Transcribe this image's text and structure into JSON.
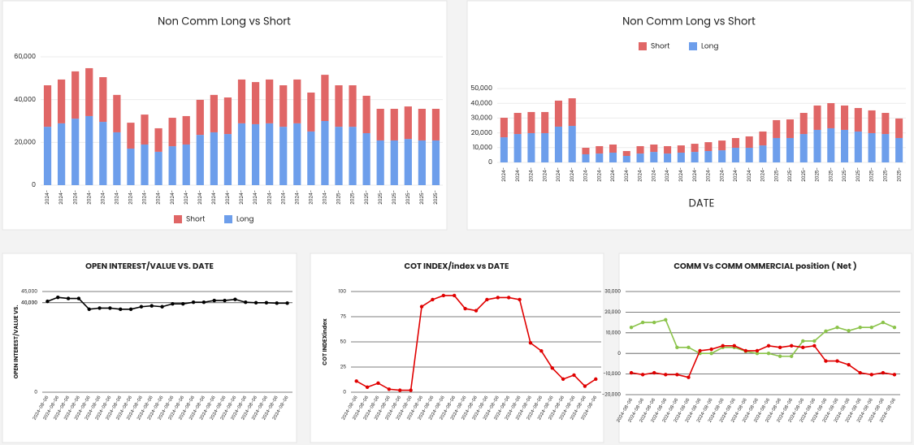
{
  "chart_data": [
    {
      "type": "stacked_bar",
      "title": "Non Comm Long vs Short",
      "legend": "bottom",
      "grid": true,
      "categories": [
        "2024-",
        "2024-",
        "2024-",
        "2024-",
        "2024-",
        "2024-",
        "2024-",
        "2024-",
        "2024-",
        "2024-",
        "2024-",
        "2024-",
        "2024-",
        "2024-",
        "2024-",
        "2024-",
        "2024-",
        "2024-",
        "2024-",
        "2024-",
        "2024-",
        "2025-",
        "2025-",
        "2025-",
        "2025-",
        "2025-",
        "2025-",
        "2025-",
        "2025-"
      ],
      "series": [
        {
          "name": "Short",
          "color": "#e06666",
          "values": [
            19400,
            20500,
            22100,
            22400,
            20900,
            17500,
            12100,
            14000,
            11000,
            13300,
            13300,
            16400,
            17500,
            17100,
            20500,
            19700,
            20500,
            19400,
            20500,
            18200,
            21600,
            19400,
            19400,
            17500,
            14800,
            14800,
            15200,
            14800,
            14800
          ]
        },
        {
          "name": "Long",
          "color": "#6d9eeb",
          "values": [
            27300,
            28900,
            31100,
            32300,
            29600,
            24700,
            17100,
            19000,
            15600,
            18200,
            19000,
            23500,
            24700,
            23900,
            28900,
            28500,
            28900,
            27300,
            28900,
            25100,
            30000,
            27300,
            27300,
            24300,
            20900,
            20900,
            21600,
            20900,
            20900
          ]
        }
      ],
      "ylim": [
        0,
        60000
      ],
      "yticks": [
        0,
        {
          "value": 20000,
          "label": "20,000"
        },
        {
          "value": 40000,
          "label": "40,000"
        },
        {
          "value": 60000,
          "label": "60,000"
        }
      ]
    },
    {
      "type": "stacked_bar",
      "title": "Non Comm Long vs Short",
      "legend": "top",
      "grid": true,
      "xlabel": "DATE",
      "categories": [
        "2024-",
        "2024-",
        "2024-",
        "2024-",
        "2024-",
        "2024-",
        "2024-",
        "2024-",
        "2024-",
        "2024-",
        "2024-",
        "2024-",
        "2024-",
        "2024-",
        "2024-",
        "2024-",
        "2024-",
        "2024-",
        "2024-",
        "2024-",
        "2025-",
        "2025-",
        "2025-",
        "2025-",
        "2025-",
        "2025-",
        "2025-",
        "2025-",
        "2025-",
        "2025-"
      ],
      "series": [
        {
          "name": "Short",
          "color": "#e06666",
          "values": [
            13200,
            14300,
            14300,
            14300,
            17600,
            18700,
            4400,
            5000,
            5500,
            3300,
            5000,
            5000,
            5000,
            4900,
            5500,
            6000,
            6600,
            6600,
            7700,
            9400,
            12100,
            12600,
            14300,
            16500,
            17000,
            16500,
            15900,
            15400,
            14300,
            13200
          ]
        },
        {
          "name": "Long",
          "color": "#6d9eeb",
          "values": [
            17000,
            19200,
            19800,
            19800,
            24200,
            24700,
            5500,
            6000,
            6600,
            4400,
            6000,
            7100,
            6000,
            6600,
            7100,
            7700,
            8200,
            9900,
            9900,
            11500,
            16500,
            16500,
            19200,
            22000,
            23100,
            22000,
            20900,
            19800,
            19200,
            16500
          ]
        }
      ],
      "ylim": [
        0,
        50000
      ],
      "yticks": [
        0,
        {
          "value": 10000,
          "label": "10,000"
        },
        {
          "value": 20000,
          "label": "20,000"
        },
        {
          "value": 30000,
          "label": "30,000"
        },
        {
          "value": 40000,
          "label": "40,000"
        },
        {
          "value": 50000,
          "label": "50,000"
        }
      ]
    },
    {
      "type": "line",
      "title": "OPEN INTEREST/VALUE VS. DATE",
      "ylabel": "OPEN INTEREST/VALUE VS.",
      "grid": true,
      "categories": [
        "2024-08-06",
        "2024-08-06",
        "2024-08-06",
        "2024-08-06",
        "2024-08-06",
        "2024-08-06",
        "2024-08-06",
        "2024-08-06",
        "2024-08-06",
        "2024-08-06",
        "2024-08-06",
        "2024-08-06",
        "2024-08-06",
        "2024-08-06",
        "2024-08-06",
        "2024-08-06",
        "2024-08-06",
        "2024-08-06",
        "2024-08-06",
        "2024-08-06",
        "2024-08-06",
        "2024-08-06",
        "2024-08-06",
        "2024-08-06"
      ],
      "series": [
        {
          "color": "#000000",
          "values": [
            40600,
            42400,
            41900,
            41900,
            37100,
            37600,
            37600,
            37100,
            37100,
            38200,
            38600,
            38200,
            39500,
            39500,
            40200,
            40200,
            41000,
            41000,
            41500,
            40200,
            40000,
            40000,
            39800,
            39800
          ]
        }
      ],
      "ylim": [
        0,
        45000
      ],
      "yticks": [
        0,
        {
          "value": 40000,
          "label": "40,000"
        },
        {
          "value": 40000,
          "label": "40,000"
        },
        {
          "value": 45000,
          "label": "45,000"
        }
      ]
    },
    {
      "type": "line",
      "title": "COT INDEX/index vs DATE",
      "ylabel": "COT INDEXindex",
      "grid": true,
      "categories": [
        "2024-08-06",
        "2024-08-06",
        "2024-08-06",
        "2024-08-06",
        "2024-08-06",
        "2024-08-06",
        "2024-08-06",
        "2024-08-06",
        "2024-08-06",
        "2024-08-06",
        "2024-08-06",
        "2024-08-06",
        "2024-08-06",
        "2024-08-06",
        "2024-08-06",
        "2024-08-06",
        "2024-08-06",
        "2024-08-06",
        "2024-08-06",
        "2024-08-06",
        "2024-08-06",
        "2024-08-06",
        "2024-08-06"
      ],
      "series": [
        {
          "color": "#e00000",
          "values": [
            11,
            5,
            9,
            3,
            2,
            2,
            85,
            92,
            96,
            96,
            83,
            81,
            92,
            94,
            94,
            92,
            49,
            41,
            24,
            13,
            17,
            6,
            13
          ]
        }
      ],
      "ylim": [
        0,
        100
      ],
      "yticks": [
        0,
        25,
        50,
        75,
        100
      ]
    },
    {
      "type": "line",
      "title": "COMM Vs COMM OMMERCIAL position ( Net )",
      "grid": true,
      "categories": [
        "2024-08-06",
        "2024-08-06",
        "2024-08-06",
        "2024-08-06",
        "2024-08-06",
        "2024-08-06",
        "2024-08-06",
        "2024-08-06",
        "2024-08-06",
        "2024-08-06",
        "2024-08-06",
        "2024-08-06",
        "2024-08-06",
        "2024-08-06",
        "2024-08-06",
        "2024-08-06",
        "2024-08-06",
        "2024-08-06",
        "2024-08-06",
        "2024-08-06",
        "2024-08-06",
        "2024-08-06",
        "2024-08-06",
        "2024-08-06"
      ],
      "series": [
        {
          "color": "#8bc34a",
          "values": [
            12600,
            15000,
            15000,
            16300,
            2900,
            2900,
            0,
            0,
            2900,
            2900,
            1000,
            0,
            0,
            -1400,
            -1400,
            6000,
            6000,
            10800,
            12600,
            11000,
            12600,
            12600,
            15000,
            12600
          ]
        },
        {
          "color": "#e00000",
          "values": [
            -9400,
            -10300,
            -9400,
            -10300,
            -10300,
            -11600,
            1300,
            2000,
            3700,
            3700,
            1300,
            1300,
            3700,
            2900,
            3700,
            2900,
            3700,
            -3700,
            -3700,
            -5500,
            -9400,
            -10300,
            -9400,
            -10300
          ]
        }
      ],
      "ylim": [
        -20000,
        30000
      ],
      "yticks": [
        {
          "value": -20000,
          "label": "-20,000"
        },
        {
          "value": -10000,
          "label": "-10,000"
        },
        0,
        {
          "value": 10000,
          "label": "10,000"
        },
        {
          "value": 20000,
          "label": "20,000"
        },
        {
          "value": 30000,
          "label": "30,000"
        }
      ]
    }
  ]
}
